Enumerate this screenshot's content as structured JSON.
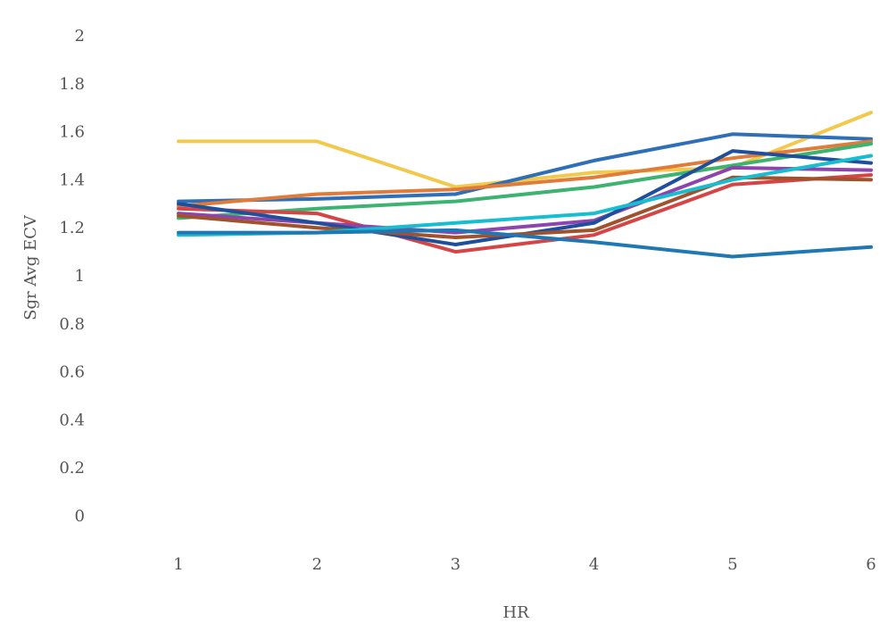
{
  "chart_data": {
    "type": "line",
    "xlabel": "HR",
    "ylabel": "Sgr Avg ECV",
    "x": [
      1,
      2,
      3,
      4,
      5,
      6
    ],
    "x_tick_labels": [
      "1",
      "2",
      "3",
      "4",
      "5",
      "6"
    ],
    "y_ticks": [
      0,
      0.2,
      0.4,
      0.6,
      0.8,
      1,
      1.2,
      1.4,
      1.6,
      1.8,
      2
    ],
    "y_tick_labels": [
      "0",
      "0.2",
      "0.4",
      "0.6",
      "0.8",
      "1",
      "1.2",
      "1.4",
      "1.6",
      "1.8",
      "2"
    ],
    "xlim": [
      1,
      6
    ],
    "ylim": [
      0,
      2
    ],
    "grid": false,
    "series": [
      {
        "color": "#f2c94c",
        "values": [
          1.56,
          1.56,
          1.37,
          1.43,
          1.45,
          1.68
        ]
      },
      {
        "color": "#2e6fb7",
        "values": [
          1.31,
          1.32,
          1.34,
          1.48,
          1.59,
          1.57
        ]
      },
      {
        "color": "#e07b39",
        "values": [
          1.29,
          1.34,
          1.36,
          1.41,
          1.49,
          1.56
        ]
      },
      {
        "color": "#3cb371",
        "values": [
          1.24,
          1.28,
          1.31,
          1.37,
          1.46,
          1.55
        ]
      },
      {
        "color": "#d64545",
        "values": [
          1.28,
          1.26,
          1.1,
          1.17,
          1.38,
          1.42
        ]
      },
      {
        "color": "#8e44ad",
        "values": [
          1.26,
          1.22,
          1.18,
          1.23,
          1.45,
          1.44
        ]
      },
      {
        "color": "#1f4e9c",
        "values": [
          1.3,
          1.22,
          1.13,
          1.22,
          1.52,
          1.47
        ]
      },
      {
        "color": "#a0522d",
        "values": [
          1.25,
          1.2,
          1.16,
          1.19,
          1.41,
          1.4
        ]
      },
      {
        "color": "#17becf",
        "values": [
          1.17,
          1.18,
          1.22,
          1.26,
          1.4,
          1.5
        ]
      },
      {
        "color": "#1f77b4",
        "values": [
          1.18,
          1.18,
          1.19,
          1.14,
          1.08,
          1.12
        ]
      }
    ]
  }
}
